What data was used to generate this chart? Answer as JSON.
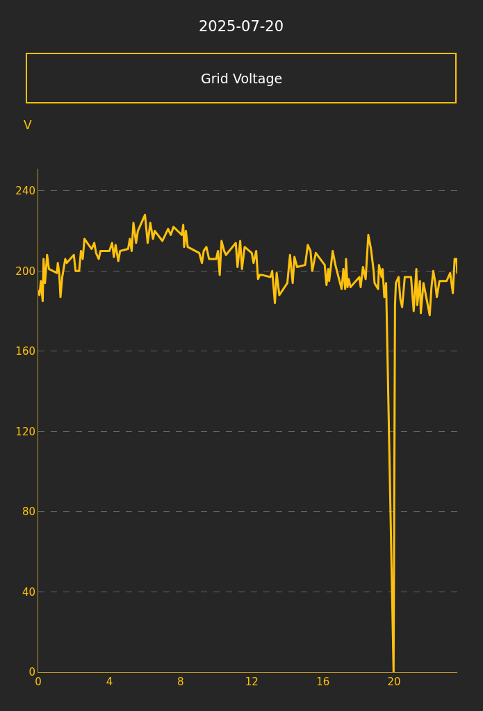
{
  "chart_data": {
    "type": "line",
    "title": "2025-07-20",
    "subtitle": "Grid Voltage",
    "ylabel": "V",
    "x": [
      0.0,
      0.07,
      0.15,
      0.25,
      0.3,
      0.38,
      0.5,
      0.6,
      1.05,
      1.1,
      1.18,
      1.25,
      1.35,
      1.52,
      1.6,
      2.0,
      2.1,
      2.3,
      2.4,
      2.5,
      2.6,
      3.0,
      3.15,
      3.25,
      3.4,
      3.5,
      4.0,
      4.15,
      4.25,
      4.35,
      4.5,
      4.6,
      5.05,
      5.15,
      5.25,
      5.35,
      5.5,
      5.6,
      6.0,
      6.15,
      6.3,
      6.45,
      6.55,
      6.98,
      7.3,
      7.45,
      7.6,
      8.07,
      8.15,
      8.2,
      8.3,
      8.4,
      9.05,
      9.2,
      9.3,
      9.45,
      9.6,
      10.0,
      10.1,
      10.2,
      10.3,
      10.45,
      10.55,
      11.1,
      11.2,
      11.35,
      11.45,
      11.6,
      12.0,
      12.1,
      12.25,
      12.35,
      12.45,
      12.6,
      13.05,
      13.15,
      13.3,
      13.4,
      13.55,
      14.0,
      14.15,
      14.3,
      14.4,
      14.55,
      15.0,
      15.15,
      15.3,
      15.4,
      15.6,
      16.1,
      16.2,
      16.3,
      16.35,
      16.55,
      16.7,
      17.05,
      17.15,
      17.25,
      17.3,
      17.38,
      17.45,
      17.55,
      18.05,
      18.12,
      18.25,
      18.4,
      18.55,
      18.7,
      18.85,
      18.9,
      19.1,
      19.15,
      19.3,
      19.35,
      19.45,
      19.55,
      19.97,
      20.05,
      20.1,
      20.25,
      20.35,
      20.45,
      20.6,
      20.95,
      21.1,
      21.25,
      21.3,
      21.45,
      21.5,
      21.65,
      22.0,
      22.1,
      22.2,
      22.3,
      22.4,
      22.55,
      22.95,
      23.05,
      23.15,
      23.3,
      23.4,
      23.5,
      23.55
    ],
    "series": [
      {
        "color": "#fec10d",
        "values": [
          190,
          188,
          195,
          185,
          206,
          194,
          208,
          201,
          199,
          204,
          199,
          187,
          197,
          206,
          204,
          208,
          200,
          200,
          210,
          206,
          216,
          211,
          214,
          209,
          206,
          210,
          210,
          214,
          207,
          213,
          205,
          210,
          211,
          216,
          210,
          224,
          214,
          220,
          228,
          214,
          224,
          216,
          220,
          215,
          221,
          218,
          222,
          218,
          223,
          212,
          220,
          212,
          209,
          204,
          210,
          212,
          206,
          206,
          210,
          198,
          215,
          210,
          208,
          214,
          202,
          215,
          201,
          212,
          209,
          204,
          210,
          196,
          198,
          198,
          197,
          200,
          184,
          199,
          188,
          194,
          208,
          194,
          207,
          202,
          203,
          213,
          210,
          200,
          209,
          203,
          193,
          201,
          195,
          210,
          203,
          191,
          201,
          191,
          206,
          192,
          196,
          192,
          197,
          192,
          202,
          196,
          218,
          211,
          200,
          194,
          191,
          203,
          197,
          201,
          187,
          194,
          0,
          183,
          194,
          197,
          186,
          182,
          197,
          197,
          180,
          201,
          183,
          195,
          179,
          194,
          178,
          192,
          200,
          195,
          187,
          195,
          195,
          197,
          199,
          189,
          206,
          206,
          199
        ]
      }
    ],
    "xlim": [
      0,
      23.55
    ],
    "ylim": [
      0,
      251
    ],
    "xticks": [
      0,
      4,
      8,
      12,
      16,
      20
    ],
    "yticks": [
      0,
      40,
      80,
      120,
      160,
      200,
      240
    ],
    "grid": "y",
    "marker": "none",
    "line_style": "solid"
  }
}
